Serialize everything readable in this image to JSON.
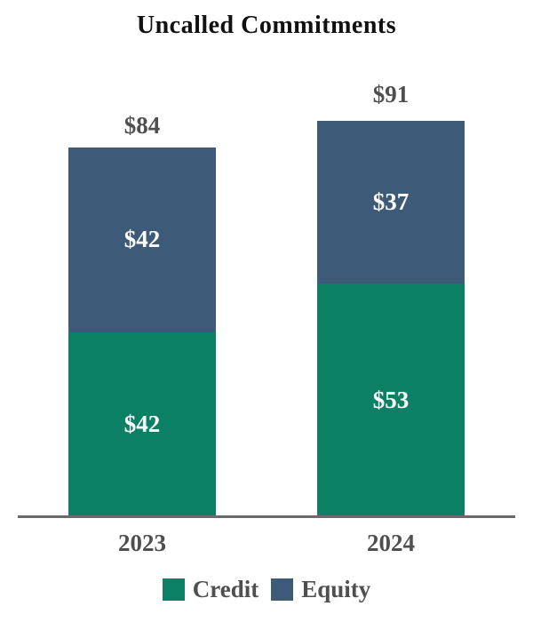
{
  "chart_data": {
    "type": "bar",
    "stacked": true,
    "title": "Uncalled Commitments",
    "categories": [
      "2023",
      "2024"
    ],
    "series": [
      {
        "name": "Credit",
        "color": "#0b8064",
        "values": [
          42,
          53
        ],
        "labels": [
          "$42",
          "$53"
        ]
      },
      {
        "name": "Equity",
        "color": "#3d5a78",
        "values": [
          42,
          37
        ],
        "labels": [
          "$42",
          "$37"
        ]
      }
    ],
    "totals": [
      84,
      91
    ],
    "total_labels": [
      "$84",
      "$91"
    ],
    "ylim": [
      0,
      91
    ],
    "grid": false,
    "legend_position": "bottom",
    "colors": {
      "title": "#111111",
      "data_label": "#ffffff",
      "axis_text": "#4f4f4f",
      "axis_line": "#6a6a6a",
      "background": "#ffffff"
    }
  }
}
